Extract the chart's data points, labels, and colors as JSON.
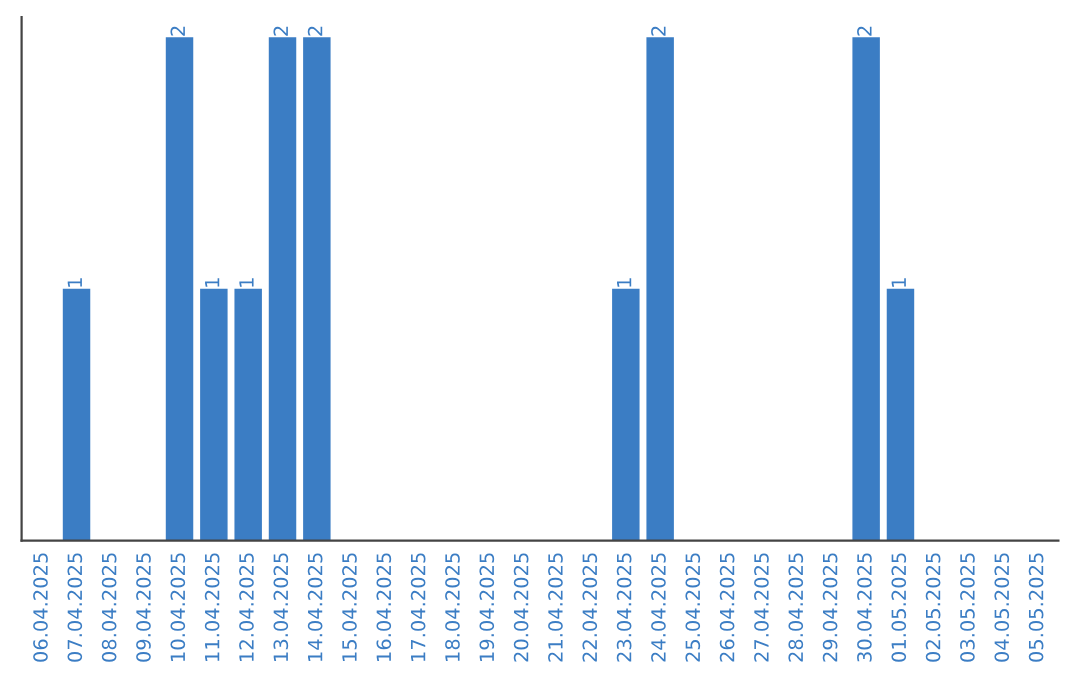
{
  "chart_data": {
    "type": "bar",
    "categories": [
      "06.04.2025",
      "07.04.2025",
      "08.04.2025",
      "09.04.2025",
      "10.04.2025",
      "11.04.2025",
      "12.04.2025",
      "13.04.2025",
      "14.04.2025",
      "15.04.2025",
      "16.04.2025",
      "17.04.2025",
      "18.04.2025",
      "19.04.2025",
      "20.04.2025",
      "21.04.2025",
      "22.04.2025",
      "23.04.2025",
      "24.04.2025",
      "25.04.2025",
      "26.04.2025",
      "27.04.2025",
      "28.04.2025",
      "29.04.2025",
      "30.04.2025",
      "01.05.2025",
      "02.05.2025",
      "03.05.2025",
      "04.05.2025",
      "05.05.2025"
    ],
    "values": [
      0,
      1,
      0,
      0,
      2,
      1,
      1,
      2,
      2,
      0,
      0,
      0,
      0,
      0,
      0,
      0,
      0,
      1,
      2,
      0,
      0,
      0,
      0,
      0,
      2,
      1,
      0,
      0,
      0,
      0
    ],
    "value_labels": [
      null,
      "1",
      null,
      null,
      "2",
      "1",
      "1",
      "2",
      "2",
      null,
      null,
      null,
      null,
      null,
      null,
      null,
      null,
      "1",
      "2",
      null,
      null,
      null,
      null,
      null,
      "2",
      "1",
      null,
      null,
      null,
      null
    ],
    "color": "#3b7dc4",
    "ylim": [
      0,
      2.08
    ],
    "tick_labels": "x",
    "grid": false,
    "legend": false
  }
}
